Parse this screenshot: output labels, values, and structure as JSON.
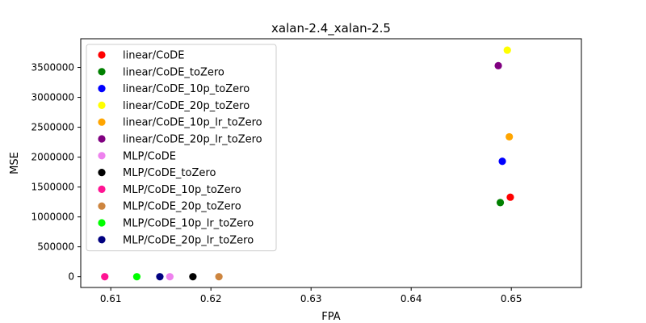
{
  "chart_data": {
    "type": "scatter",
    "title": "xalan-2.4_xalan-2.5",
    "xlabel": "FPA",
    "ylabel": "MSE",
    "xlim": [
      0.607,
      0.657
    ],
    "ylim": [
      -180000,
      3980000
    ],
    "xticks": [
      0.61,
      0.62,
      0.63,
      0.64,
      0.65
    ],
    "yticks": [
      0,
      500000,
      1000000,
      1500000,
      2000000,
      2500000,
      3000000,
      3500000
    ],
    "grid": false,
    "legend_position": "upper-left",
    "series": [
      {
        "name": "linear/CoDE",
        "color": "#ff0000",
        "x": 0.6499,
        "y": 1330000
      },
      {
        "name": "linear/CoDE_toZero",
        "color": "#008000",
        "x": 0.6489,
        "y": 1240000
      },
      {
        "name": "linear/CoDE_10p_toZero",
        "color": "#0000ff",
        "x": 0.6491,
        "y": 1930000
      },
      {
        "name": "linear/CoDE_20p_toZero",
        "color": "#ffff00",
        "x": 0.6496,
        "y": 3790000
      },
      {
        "name": "linear/CoDE_10p_lr_toZero",
        "color": "#ffa500",
        "x": 0.6498,
        "y": 2340000
      },
      {
        "name": "linear/CoDE_20p_lr_toZero",
        "color": "#800080",
        "x": 0.6487,
        "y": 3530000
      },
      {
        "name": "MLP/CoDE",
        "color": "#ee82ee",
        "x": 0.6159,
        "y": 0
      },
      {
        "name": "MLP/CoDE_toZero",
        "color": "#000000",
        "x": 0.6182,
        "y": 0
      },
      {
        "name": "MLP/CoDE_10p_toZero",
        "color": "#ff1493",
        "x": 0.6094,
        "y": 0
      },
      {
        "name": "MLP/CoDE_20p_toZero",
        "color": "#cd853f",
        "x": 0.6208,
        "y": 0
      },
      {
        "name": "MLP/CoDE_10p_lr_toZero",
        "color": "#00ff00",
        "x": 0.6126,
        "y": 0
      },
      {
        "name": "MLP/CoDE_20p_lr_toZero",
        "color": "#000080",
        "x": 0.6149,
        "y": 0
      }
    ]
  }
}
